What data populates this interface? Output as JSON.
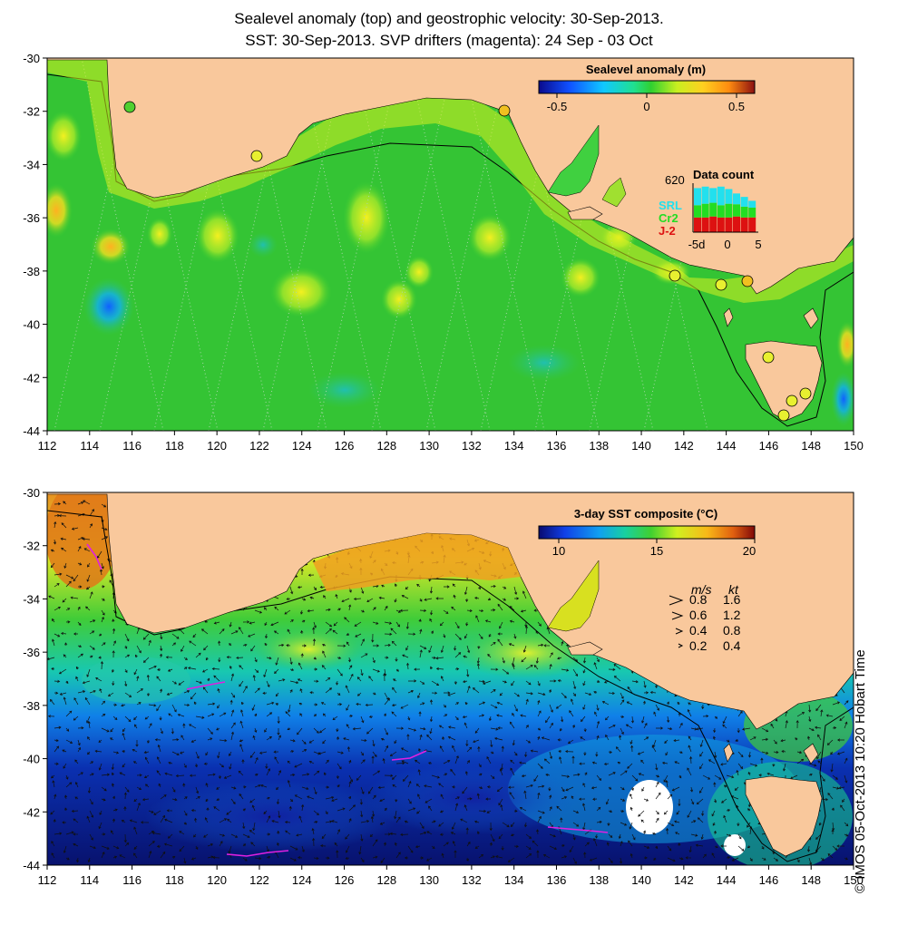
{
  "titles": {
    "line1": "Sealevel anomaly (top) and geostrophic velocity: 30-Sep-2013.",
    "line2": "SST: 30-Sep-2013. SVP drifters (magenta): 24 Sep - 03 Oct"
  },
  "axes": {
    "x_ticks": [
      "112",
      "114",
      "116",
      "118",
      "120",
      "122",
      "124",
      "126",
      "128",
      "130",
      "132",
      "134",
      "136",
      "138",
      "140",
      "142",
      "144",
      "146",
      "148",
      "150"
    ],
    "y_ticks": [
      "-30",
      "-32",
      "-34",
      "-36",
      "-38",
      "-40",
      "-42",
      "-44"
    ],
    "xlim": [
      112,
      150
    ],
    "ylim": [
      -44,
      -30
    ]
  },
  "top_panel": {
    "colorbar_title": "Sealevel anomaly (m)",
    "colorbar_ticks": [
      "-0.5",
      "0",
      "0.5"
    ],
    "colorbar_range": [
      -0.6,
      0.6
    ],
    "data_count": {
      "title": "Data count",
      "max_label": "620",
      "satellites": [
        {
          "name": "SRL",
          "color": "#22e0ee"
        },
        {
          "name": "Cr2",
          "color": "#22dd22"
        },
        {
          "name": "J-2",
          "color": "#dd1111"
        }
      ],
      "x_tick_labels": [
        "-5d",
        "0",
        "5"
      ]
    }
  },
  "bottom_panel": {
    "colorbar_title": "3-day SST composite (°C)",
    "colorbar_ticks": [
      "10",
      "15",
      "20"
    ],
    "colorbar_range": [
      9,
      20
    ],
    "velocity_legend": {
      "header_ms": "m/s",
      "header_kt": "kt",
      "rows": [
        {
          "ms": "0.8",
          "kt": "1.6"
        },
        {
          "ms": "0.6",
          "kt": "1.2"
        },
        {
          "ms": "0.4",
          "kt": "0.8"
        },
        {
          "ms": "0.2",
          "kt": "0.4"
        }
      ]
    }
  },
  "credit": "© IMOS 05-Oct-2013 10:20 Hobart Time",
  "colors": {
    "land": "#f9c89c",
    "ocean_anomaly_base": "#2dc62d",
    "sst_deep": "#08126e",
    "drifter": "#e020e0"
  }
}
